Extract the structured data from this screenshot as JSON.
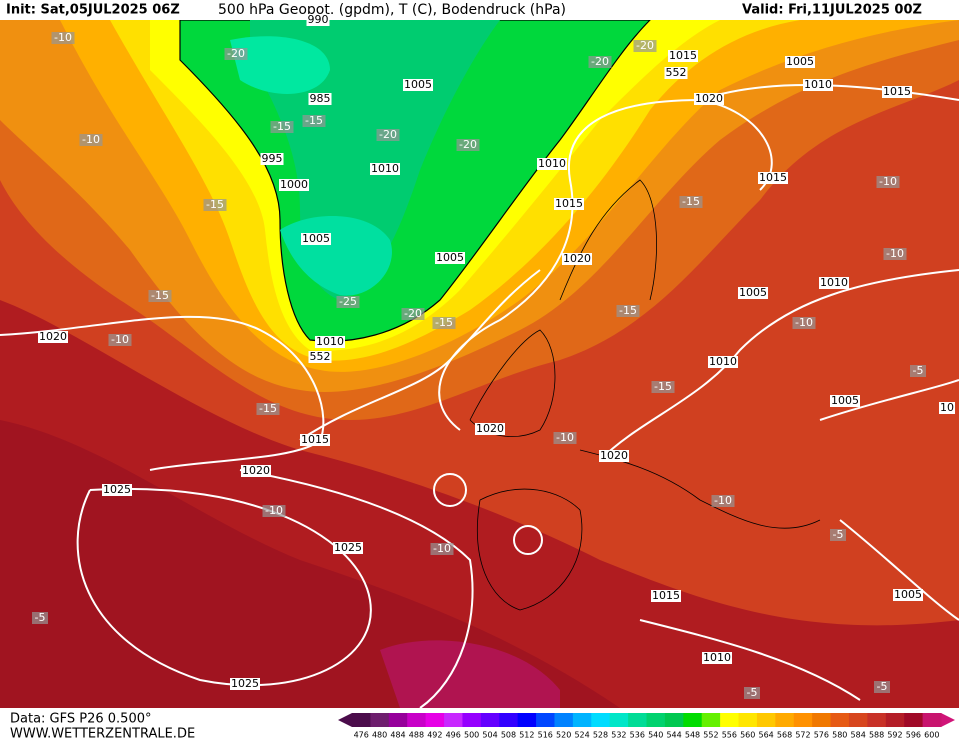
{
  "header": {
    "init": "Init: Sat,05JUL2025 06Z",
    "title": "500 hPa Geopot. (gpdm), T (C), Bodendruck (hPa)",
    "valid": "Valid: Fri,11JUL2025 00Z"
  },
  "map_labels": [
    "990",
    "-10",
    "-20",
    "-20",
    "1015",
    "552",
    "-20",
    "1005",
    "1010",
    "1015",
    "985",
    "1005",
    "1020",
    "-15",
    "-15",
    "-20",
    "-10",
    "-20",
    "995",
    "1010",
    "1010",
    "1015",
    "-10",
    "1000",
    "-15",
    "1015",
    "-15",
    "1005",
    "1005",
    "1020",
    "-10",
    "1010",
    "-15",
    "1005",
    "-25",
    "-20",
    "-15",
    "-15",
    "-10",
    "1020",
    "-10",
    "1010",
    "552",
    "1010",
    "-5",
    "-15",
    "1005",
    "10",
    "-15",
    "1020",
    "-10",
    "1015",
    "1020",
    "1020",
    "1025",
    "-10",
    "-10",
    "1025",
    "-10",
    "-5",
    "-5",
    "1015",
    "1005",
    "1010",
    "1025",
    "-5",
    "-5"
  ],
  "footer": {
    "source": "Data: GFS P26 0.500°",
    "site": "WWW.WETTERZENTRALE.DE"
  },
  "legend": {
    "labels": [
      "476",
      "480",
      "484",
      "488",
      "492",
      "496",
      "500",
      "504",
      "508",
      "512",
      "516",
      "520",
      "524",
      "528",
      "532",
      "536",
      "540",
      "544",
      "548",
      "552",
      "556",
      "560",
      "564",
      "568",
      "572",
      "576",
      "580",
      "584",
      "588",
      "592",
      "596",
      "600"
    ],
    "colors": [
      "#4b0c4b",
      "#6e1e6e",
      "#96009b",
      "#c800c8",
      "#e600e6",
      "#c828ff",
      "#9600ff",
      "#6400ff",
      "#3200ff",
      "#0000ff",
      "#0046ff",
      "#0082ff",
      "#00b4ff",
      "#00dcff",
      "#00e6c8",
      "#00dc96",
      "#00d26e",
      "#00c850",
      "#00dc00",
      "#64f000",
      "#ffff00",
      "#ffe600",
      "#ffc800",
      "#ffaa00",
      "#ff9100",
      "#f07800",
      "#e65a14",
      "#d7461e",
      "#c83228",
      "#b41e28",
      "#a00a28",
      "#c8146e"
    ]
  }
}
